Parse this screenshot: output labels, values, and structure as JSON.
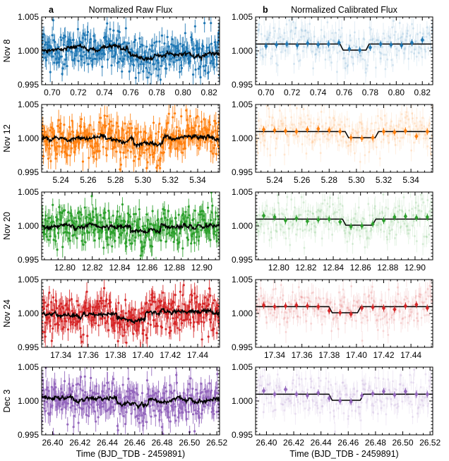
{
  "colors": {
    "Nov 8": "#1f77b4",
    "Nov 12": "#ff7f0e",
    "Nov 20": "#2ca02c",
    "Nov 24": "#d62728",
    "Dec 3": "#9467bd",
    "model": "#000000"
  },
  "chart_data": [
    {
      "type": "scatter",
      "panel": "a",
      "row": "Nov 8",
      "column_title": "Normalized Raw Flux",
      "xlim": [
        0.692,
        0.828
      ],
      "ylim": [
        0.995,
        1.005
      ],
      "xticks": [
        "0.70",
        "0.72",
        "0.74",
        "0.76",
        "0.78",
        "0.80",
        "0.82"
      ],
      "yticks": [
        "0.995",
        "1.000",
        "1.005"
      ],
      "xlabel": "",
      "series": [
        {
          "style": "raw-points-with-errorbars",
          "scatter": 0.0015,
          "err": 0.0012
        },
        {
          "style": "model-line",
          "transit": [
            0.758,
            0.778
          ],
          "depth": 0.0006
        }
      ]
    },
    {
      "type": "scatter",
      "panel": "b",
      "row": "Nov 8",
      "column_title": "Normalized Calibrated Flux",
      "xlim": [
        0.692,
        0.828
      ],
      "ylim": [
        0.995,
        1.005
      ],
      "xticks": [
        "0.70",
        "0.72",
        "0.74",
        "0.76",
        "0.78",
        "0.80",
        "0.82"
      ],
      "yticks": [
        "0.995",
        "1.000",
        "1.005"
      ],
      "xlabel": "",
      "series": [
        {
          "style": "binned-diamonds",
          "x": [
            0.7,
            0.708,
            0.716,
            0.724,
            0.732,
            0.74,
            0.748,
            0.756,
            0.764,
            0.772,
            0.78,
            0.788,
            0.796,
            0.804,
            0.812,
            0.82
          ],
          "y": [
            1.0007,
            1.0009,
            1.001,
            1.0008,
            1.0011,
            1.0009,
            1.001,
            1.0012,
            1.0003,
            1.0001,
            1.0005,
            1.001,
            1.0009,
            1.0008,
            1.0012,
            1.0016
          ]
        },
        {
          "style": "model-line",
          "transit": [
            0.758,
            0.778
          ],
          "depth": 0.0009
        }
      ]
    },
    {
      "type": "scatter",
      "panel": "a",
      "row": "Nov 12",
      "xlim": [
        5.226,
        5.356
      ],
      "ylim": [
        0.995,
        1.005
      ],
      "xticks": [
        "5.24",
        "5.26",
        "5.28",
        "5.30",
        "5.32",
        "5.34"
      ],
      "yticks": [
        "0.995",
        "1.000",
        "1.005"
      ],
      "xlabel": "",
      "series": [
        {
          "style": "raw-points-with-errorbars",
          "scatter": 0.0016,
          "err": 0.0013
        },
        {
          "style": "model-line",
          "transit": [
            5.293,
            5.315
          ],
          "depth": 0.0008
        }
      ]
    },
    {
      "type": "scatter",
      "panel": "b",
      "row": "Nov 12",
      "xlim": [
        5.226,
        5.356
      ],
      "ylim": [
        0.995,
        1.005
      ],
      "xticks": [
        "5.24",
        "5.26",
        "5.28",
        "5.30",
        "5.32",
        "5.34"
      ],
      "yticks": [
        "0.995",
        "1.000",
        "1.005"
      ],
      "xlabel": "",
      "series": [
        {
          "style": "binned-diamonds",
          "x": [
            5.232,
            5.24,
            5.248,
            5.256,
            5.264,
            5.272,
            5.28,
            5.288,
            5.296,
            5.304,
            5.312,
            5.32,
            5.328,
            5.336,
            5.344,
            5.352
          ],
          "y": [
            1.0013,
            1.0012,
            1.0011,
            1.001,
            1.0013,
            1.0014,
            1.0012,
            1.001,
            1.0001,
            1.0,
            1.0001,
            1.001,
            1.0009,
            1.0011,
            1.0003,
            1.001
          ]
        },
        {
          "style": "model-line",
          "transit": [
            5.293,
            5.315
          ],
          "depth": 0.0009
        }
      ]
    },
    {
      "type": "scatter",
      "panel": "a",
      "row": "Nov 20",
      "xlim": [
        12.783,
        12.913
      ],
      "ylim": [
        0.995,
        1.005
      ],
      "xticks": [
        "12.80",
        "12.82",
        "12.84",
        "12.86",
        "12.88",
        "12.90"
      ],
      "yticks": [
        "0.995",
        "1.000",
        "1.005"
      ],
      "xlabel": "",
      "series": [
        {
          "style": "raw-points-with-errorbars",
          "scatter": 0.0015,
          "err": 0.0012
        },
        {
          "style": "model-line",
          "transit": [
            12.848,
            12.87
          ],
          "depth": 0.0008
        }
      ]
    },
    {
      "type": "scatter",
      "panel": "b",
      "row": "Nov 20",
      "xlim": [
        12.783,
        12.913
      ],
      "ylim": [
        0.995,
        1.005
      ],
      "xticks": [
        "12.80",
        "12.82",
        "12.84",
        "12.86",
        "12.88",
        "12.90"
      ],
      "yticks": [
        "0.995",
        "1.000",
        "1.005"
      ],
      "xlabel": "",
      "series": [
        {
          "style": "binned-diamonds",
          "x": [
            12.789,
            12.797,
            12.805,
            12.813,
            12.821,
            12.829,
            12.837,
            12.845,
            12.853,
            12.861,
            12.869,
            12.877,
            12.885,
            12.893,
            12.901,
            12.909
          ],
          "y": [
            1.0015,
            1.0013,
            1.0008,
            1.0011,
            1.0007,
            1.0009,
            1.001,
            1.0006,
            0.9999,
            1.0,
            1.0003,
            1.0008,
            1.0013,
            1.0014,
            1.0012,
            1.0013
          ]
        },
        {
          "style": "model-line",
          "transit": [
            12.848,
            12.87
          ],
          "depth": 0.0009
        }
      ]
    },
    {
      "type": "scatter",
      "panel": "a",
      "row": "Nov 24",
      "xlim": [
        17.326,
        17.456
      ],
      "ylim": [
        0.995,
        1.005
      ],
      "xticks": [
        "17.34",
        "17.36",
        "17.38",
        "17.40",
        "17.42",
        "17.44"
      ],
      "yticks": [
        "0.995",
        "1.000",
        "1.005"
      ],
      "xlabel": "",
      "series": [
        {
          "style": "raw-points-with-errorbars",
          "scatter": 0.0016,
          "err": 0.0013
        },
        {
          "style": "model-line",
          "transit": [
            17.381,
            17.402
          ],
          "depth": 0.0008
        }
      ]
    },
    {
      "type": "scatter",
      "panel": "b",
      "row": "Nov 24",
      "xlim": [
        17.326,
        17.456
      ],
      "ylim": [
        0.995,
        1.005
      ],
      "xticks": [
        "17.34",
        "17.36",
        "17.38",
        "17.40",
        "17.42",
        "17.44"
      ],
      "yticks": [
        "0.995",
        "1.000",
        "1.005"
      ],
      "xlabel": "",
      "series": [
        {
          "style": "binned-diamonds",
          "x": [
            17.332,
            17.34,
            17.348,
            17.356,
            17.364,
            17.372,
            17.38,
            17.388,
            17.396,
            17.404,
            17.412,
            17.42,
            17.428,
            17.436,
            17.444,
            17.452
          ],
          "y": [
            1.0012,
            1.001,
            1.0011,
            1.0012,
            1.0011,
            1.001,
            1.0004,
            1.0001,
            0.9999,
            1.0008,
            1.0009,
            1.0008,
            1.0006,
            1.0011,
            1.0013,
            1.0008
          ]
        },
        {
          "style": "model-line",
          "transit": [
            17.381,
            17.402
          ],
          "depth": 0.0009
        }
      ]
    },
    {
      "type": "scatter",
      "panel": "a",
      "row": "Dec 3",
      "xlim": [
        26.392,
        26.522
      ],
      "ylim": [
        0.995,
        1.005
      ],
      "xticks": [
        "26.40",
        "26.42",
        "26.44",
        "26.46",
        "26.48",
        "26.50",
        "26.52"
      ],
      "yticks": [
        "0.995",
        "1.000",
        "1.005"
      ],
      "xlabel": "Time (BJD_TDB - 2459891)",
      "series": [
        {
          "style": "raw-points-with-errorbars",
          "scatter": 0.0016,
          "err": 0.0013
        },
        {
          "style": "model-line",
          "transit": [
            26.447,
            26.47
          ],
          "depth": 0.0008
        }
      ]
    },
    {
      "type": "scatter",
      "panel": "b",
      "row": "Dec 3",
      "xlim": [
        26.392,
        26.522
      ],
      "ylim": [
        0.995,
        1.005
      ],
      "xticks": [
        "26.40",
        "26.42",
        "26.44",
        "26.46",
        "26.48",
        "26.50",
        "26.52"
      ],
      "yticks": [
        "0.995",
        "1.000",
        "1.005"
      ],
      "xlabel": "Time (BJD_TDB - 2459891)",
      "series": [
        {
          "style": "binned-diamonds",
          "x": [
            26.398,
            26.406,
            26.414,
            26.422,
            26.43,
            26.438,
            26.446,
            26.454,
            26.462,
            26.47,
            26.478,
            26.486,
            26.494,
            26.502,
            26.51,
            26.518
          ],
          "y": [
            1.0015,
            1.001,
            1.0017,
            1.001,
            1.0008,
            1.0012,
            1.0004,
            1.0,
            0.9999,
            1.0008,
            1.0011,
            1.0014,
            1.0009,
            1.0014,
            1.001,
            1.001
          ]
        },
        {
          "style": "model-line",
          "transit": [
            26.447,
            26.47
          ],
          "depth": 0.0009
        }
      ]
    }
  ]
}
